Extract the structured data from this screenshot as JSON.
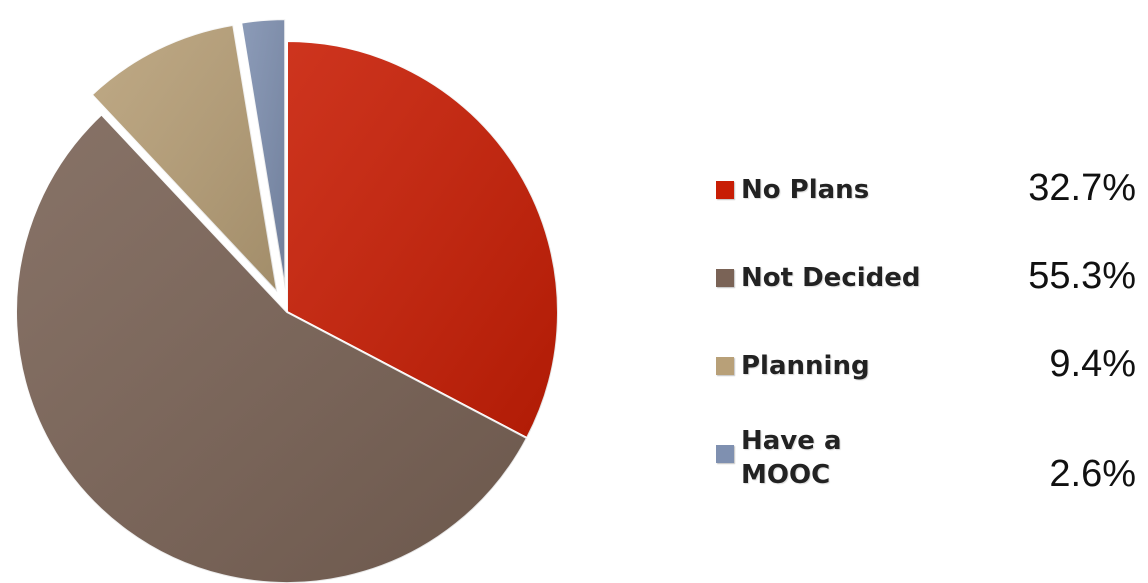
{
  "chart_data": {
    "type": "pie",
    "title": "",
    "legend_position": "right",
    "slices": [
      {
        "label": "No Plans",
        "value": 32.7,
        "value_label": "32.7%",
        "color": "#c81e05",
        "exploded": false
      },
      {
        "label": "Not Decided",
        "value": 55.3,
        "value_label": "55.3%",
        "color": "#7a6356",
        "exploded": false
      },
      {
        "label": "Planning",
        "value": 9.4,
        "value_label": "9.4%",
        "color": "#b8a078",
        "exploded": true
      },
      {
        "label": "Have a\nMOOC",
        "value": 2.6,
        "value_label": "2.6%",
        "color": "#7f90b0",
        "exploded": true
      }
    ]
  }
}
